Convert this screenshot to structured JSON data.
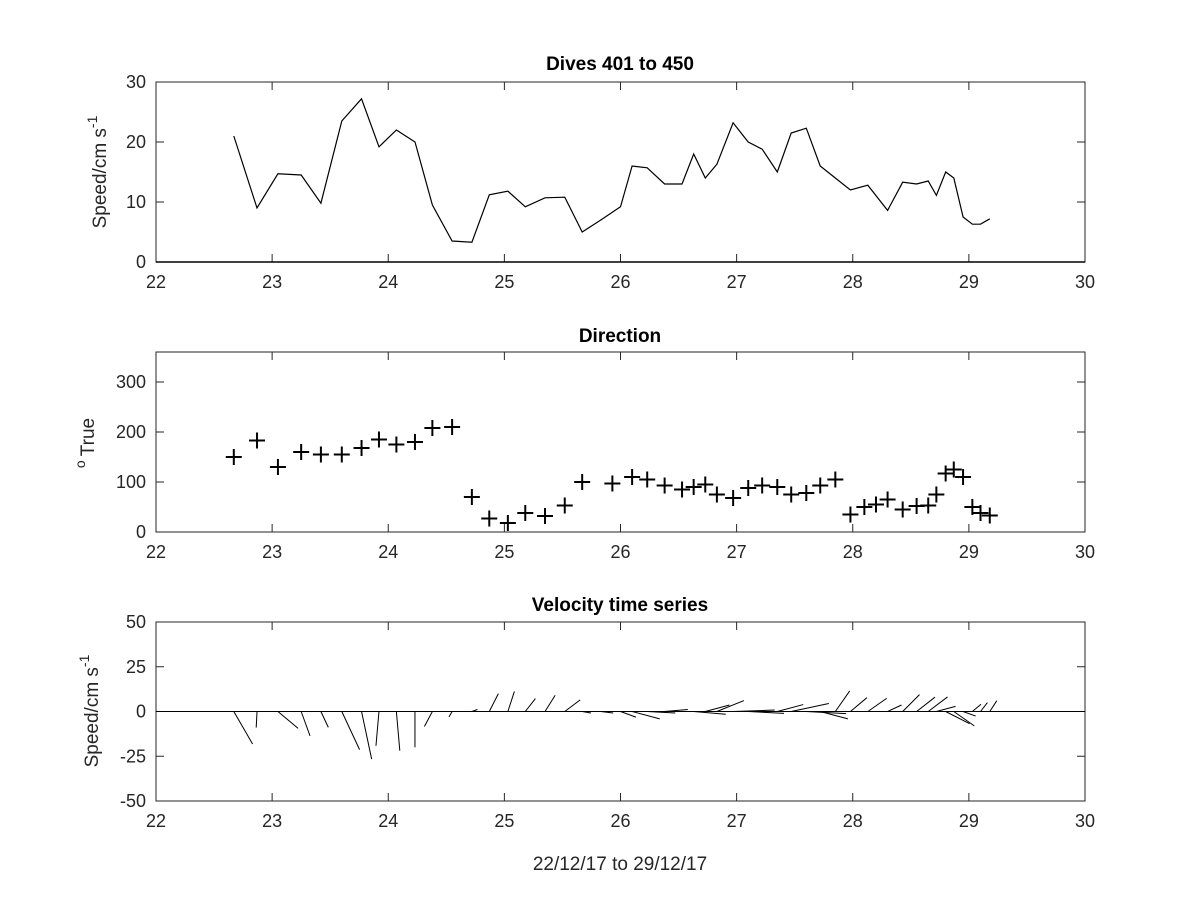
{
  "chart_data": [
    {
      "type": "line",
      "title": "Dives 401 to 450",
      "ylabel_main": "Speed/cm s",
      "ylabel_sup": "-1",
      "xlim": [
        22,
        30
      ],
      "ylim": [
        0,
        30
      ],
      "xticks": [
        22,
        23,
        24,
        25,
        26,
        27,
        28,
        29,
        30
      ],
      "yticks": [
        0,
        10,
        20,
        30
      ],
      "series": [
        {
          "x": [
            22.67,
            22.87,
            23.05,
            23.25,
            23.42,
            23.6,
            23.77,
            23.92,
            24.07,
            24.23,
            24.38,
            24.55,
            24.72,
            24.87,
            25.03,
            25.18,
            25.35,
            25.52,
            25.67,
            25.83,
            26.0,
            26.1,
            26.23,
            26.38,
            26.53,
            26.63,
            26.73,
            26.83,
            26.97,
            27.1,
            27.22,
            27.35,
            27.47,
            27.6,
            27.72,
            27.85,
            27.98,
            28.13,
            28.3,
            28.43,
            28.55,
            28.65,
            28.72,
            28.8,
            28.87,
            28.95,
            29.03,
            29.1,
            29.18
          ],
          "y": [
            21,
            9,
            14.7,
            14.5,
            9.8,
            23.5,
            27.2,
            19.2,
            22,
            20,
            9.5,
            3.5,
            3.3,
            11.2,
            11.8,
            9.2,
            10.7,
            10.8,
            5,
            7,
            9.2,
            16,
            15.7,
            13,
            13,
            18,
            14,
            16.3,
            23.2,
            20,
            18.8,
            15,
            21.5,
            22.3,
            16,
            14,
            12,
            12.8,
            8.6,
            13.3,
            13,
            13.5,
            11.1,
            15,
            14,
            7.5,
            6.3,
            6.3,
            7.2
          ]
        }
      ]
    },
    {
      "type": "scatter",
      "title": "Direction",
      "ylabel_sup": "o",
      "ylabel_main": "True",
      "xlim": [
        22,
        30
      ],
      "ylim": [
        0,
        360
      ],
      "xticks": [
        22,
        23,
        24,
        25,
        26,
        27,
        28,
        29,
        30
      ],
      "yticks": [
        0,
        100,
        200,
        300
      ],
      "series": [
        {
          "x": [
            22.67,
            22.87,
            23.05,
            23.25,
            23.42,
            23.6,
            23.77,
            23.92,
            24.07,
            24.23,
            24.38,
            24.55,
            24.72,
            24.87,
            25.03,
            25.18,
            25.35,
            25.52,
            25.67,
            25.93,
            26.1,
            26.23,
            26.38,
            26.53,
            26.63,
            26.73,
            26.83,
            26.97,
            27.1,
            27.22,
            27.35,
            27.47,
            27.6,
            27.72,
            27.85,
            27.98,
            28.1,
            28.2,
            28.3,
            28.43,
            28.55,
            28.65,
            28.72,
            28.8,
            28.87,
            28.95,
            29.03,
            29.1,
            29.18
          ],
          "y": [
            150,
            183,
            130,
            160,
            155,
            155,
            168,
            185,
            175,
            180,
            208,
            210,
            70,
            27,
            18,
            38,
            32,
            53,
            100,
            97,
            110,
            105,
            93,
            85,
            90,
            95,
            75,
            68,
            88,
            93,
            90,
            75,
            78,
            93,
            105,
            35,
            50,
            55,
            65,
            45,
            52,
            53,
            75,
            117,
            125,
            110,
            50,
            38,
            33
          ]
        }
      ]
    },
    {
      "type": "stick",
      "title": "Velocity time series",
      "ylabel_main": "Speed/cm s",
      "ylabel_sup": "-1",
      "xlabel": "22/12/17 to 29/12/17",
      "xlim": [
        22,
        30
      ],
      "ylim": [
        -50,
        50
      ],
      "xticks": [
        22,
        23,
        24,
        25,
        26,
        27,
        28,
        29,
        30
      ],
      "yticks": [
        -50,
        -25,
        0,
        25,
        50
      ],
      "ytick_labels": [
        "-50",
        "-25",
        "0",
        "25",
        "50"
      ],
      "series": [
        {
          "x": [
            22.67,
            22.87,
            23.05,
            23.25,
            23.42,
            23.6,
            23.77,
            23.92,
            24.07,
            24.23,
            24.38,
            24.55,
            24.72,
            24.87,
            25.03,
            25.18,
            25.35,
            25.52,
            25.67,
            25.83,
            26.0,
            26.1,
            26.23,
            26.38,
            26.53,
            26.63,
            26.73,
            26.83,
            26.97,
            27.1,
            27.22,
            27.35,
            27.47,
            27.6,
            27.72,
            27.85,
            27.98,
            28.13,
            28.3,
            28.43,
            28.55,
            28.65,
            28.72,
            28.8,
            28.87,
            28.95,
            29.03,
            29.1,
            29.18
          ],
          "speed": [
            21,
            9,
            14.7,
            14.5,
            9.8,
            23.5,
            27.2,
            19.2,
            22,
            20,
            9.5,
            3.5,
            3.3,
            11.2,
            11.8,
            9.2,
            10.7,
            10.8,
            5,
            7,
            9.2,
            16,
            15.7,
            13,
            13,
            18,
            14,
            16.3,
            23.2,
            20,
            18.8,
            15,
            21.5,
            22.3,
            16,
            14,
            12,
            12.8,
            8.6,
            13.3,
            13,
            13.5,
            11.1,
            15,
            14,
            7.5,
            6.3,
            6.3,
            7.2
          ],
          "direction": [
            150,
            183,
            130,
            160,
            155,
            155,
            168,
            185,
            175,
            180,
            208,
            210,
            70,
            27,
            18,
            38,
            32,
            53,
            100,
            97,
            110,
            105,
            93,
            85,
            90,
            95,
            75,
            68,
            88,
            93,
            90,
            75,
            78,
            93,
            105,
            35,
            50,
            55,
            65,
            45,
            52,
            53,
            75,
            117,
            125,
            110,
            50,
            38,
            33
          ]
        }
      ]
    }
  ]
}
